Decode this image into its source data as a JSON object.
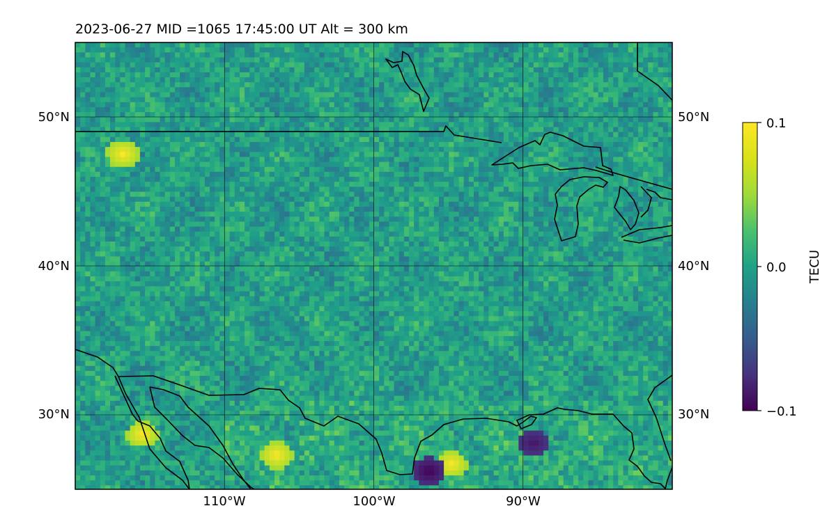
{
  "title": "2023-06-27  MID =1065    17:45:00  UT  Alt = 300 km",
  "map": {
    "lon_range": [
      -120,
      -80
    ],
    "lat_range": [
      25,
      55
    ],
    "lon_ticks": [
      {
        "value": -110,
        "label": "110°W"
      },
      {
        "value": -100,
        "label": "100°W"
      },
      {
        "value": -90,
        "label": "90°W"
      }
    ],
    "lat_ticks": [
      {
        "value": 50,
        "label": "50°N"
      },
      {
        "value": 40,
        "label": "40°N"
      },
      {
        "value": 30,
        "label": "30°N"
      }
    ],
    "gridlines": true,
    "field_colormap": "viridis",
    "field_description_noise_seed": 1065
  },
  "colorbar": {
    "label": "TECU",
    "min": -0.1,
    "max": 0.1,
    "ticks": [
      {
        "value": 0.1,
        "label": "0.1"
      },
      {
        "value": 0.0,
        "label": "0.0"
      },
      {
        "value": -0.1,
        "label": "−0.1"
      }
    ],
    "colormap": "viridis"
  },
  "chart_data": {
    "type": "heatmap",
    "title": "2023-06-27  MID =1065    17:45:00  UT  Alt = 300 km",
    "xlabel": "",
    "ylabel": "",
    "x_ticks": [
      "110°W",
      "100°W",
      "90°W"
    ],
    "y_ticks": [
      "50°N",
      "40°N",
      "30°N"
    ],
    "colorbar_label": "TECU",
    "value_range": [
      -0.1,
      0.1
    ],
    "grid": true,
    "hotspots": [
      {
        "lon": -115.5,
        "lat": 28.7,
        "value": 0.1
      },
      {
        "lon": -106.5,
        "lat": 27.3,
        "value": 0.1
      },
      {
        "lon": -94.8,
        "lat": 26.7,
        "value": 0.1
      },
      {
        "lon": -116.8,
        "lat": 47.5,
        "value": 0.1
      },
      {
        "lon": -96.3,
        "lat": 26.2,
        "value": -0.1
      },
      {
        "lon": -89.3,
        "lat": 28.1,
        "value": -0.09
      }
    ]
  }
}
